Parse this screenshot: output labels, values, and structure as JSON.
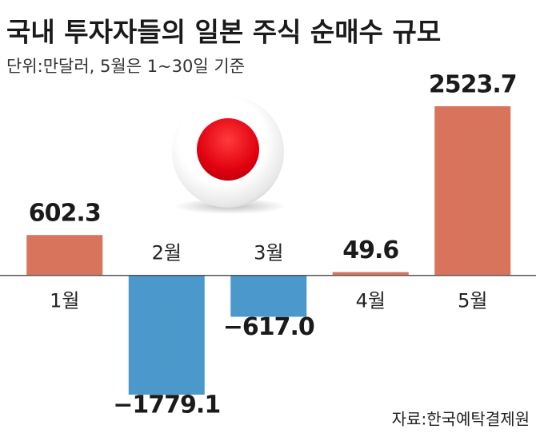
{
  "chart_data": {
    "type": "bar",
    "title": "국내 투자자들의 일본 주식 순매수 규모",
    "subtitle": "단위:만달러, 5월은 1~30일 기준",
    "source": "자료:한국예탁결제원",
    "categories": [
      "1월",
      "2월",
      "3월",
      "4월",
      "5월"
    ],
    "values": [
      602.3,
      -1779.1,
      -617.0,
      49.6,
      2523.7
    ],
    "value_labels": [
      "602.3",
      "−1779.1",
      "−617.0",
      "49.6",
      "2523.7"
    ],
    "colors": [
      "#d9745c",
      "#4b99ca",
      "#4b99ca",
      "#d9745c",
      "#d9745c"
    ]
  }
}
